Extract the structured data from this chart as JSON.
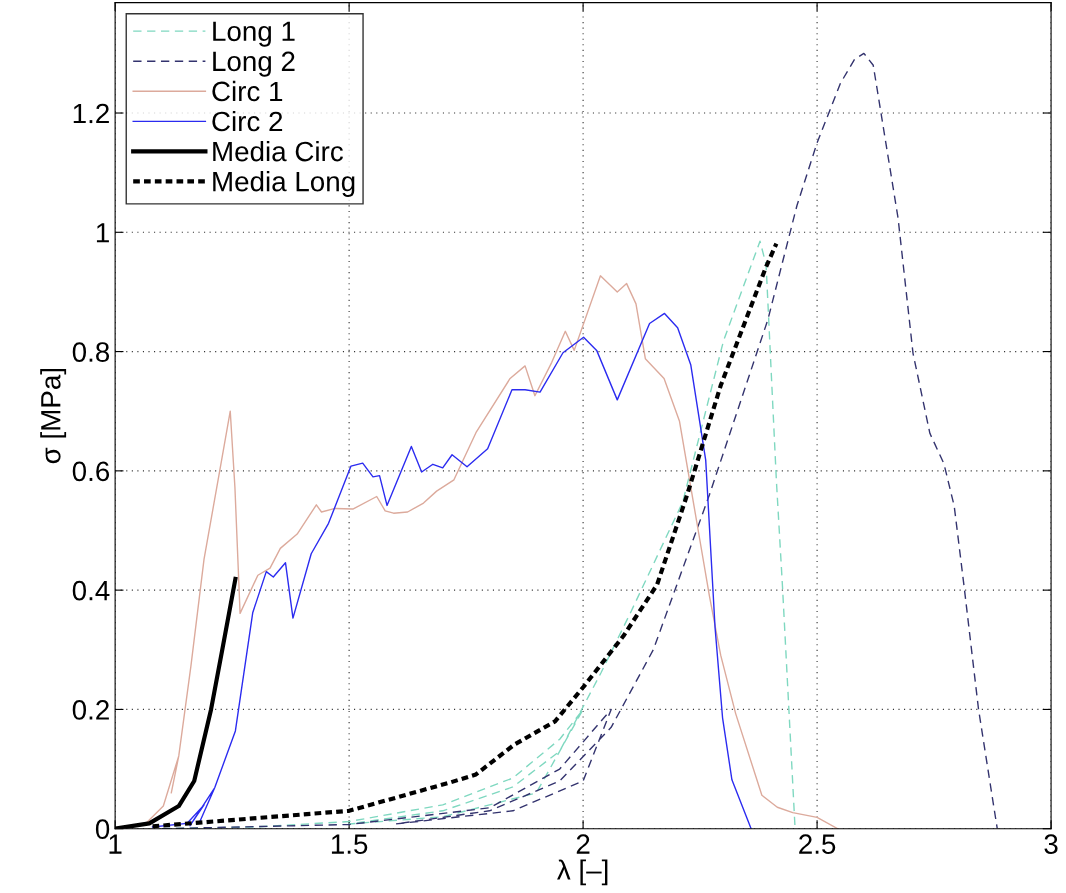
{
  "chart_data": {
    "type": "line",
    "xlabel": "λ [–]",
    "ylabel": "σ [MPa]",
    "xlim": [
      1,
      3
    ],
    "ylim": [
      0,
      1.385
    ],
    "xticks": [
      1,
      1.5,
      2,
      2.5,
      3
    ],
    "yticks": [
      0,
      0.2,
      0.4,
      0.6,
      0.8,
      1,
      1.2
    ],
    "grid": true,
    "legend": "top left",
    "marker": "none",
    "series": [
      {
        "name": "Long 1",
        "color": "#7fd8c0",
        "line_style": "dashed",
        "x": [
          1.1,
          1.3,
          1.5,
          1.7,
          1.85,
          1.95,
          2.0,
          1.9,
          1.7,
          1.5,
          1.7,
          1.85,
          1.95,
          2.038,
          2.1,
          2.213,
          2.3,
          2.378,
          2.391,
          2.413,
          2.426,
          2.453
        ],
        "values": [
          0.0,
          0.003,
          0.012,
          0.04,
          0.085,
          0.15,
          0.2,
          0.06,
          0.02,
          0.008,
          0.03,
          0.07,
          0.13,
          0.261,
          0.36,
          0.548,
          0.818,
          0.985,
          0.946,
          0.584,
          0.407,
          0.0
        ]
      },
      {
        "name": "Long 2",
        "color": "#33336e",
        "line_style": "dashed",
        "x": [
          1.1,
          1.5,
          1.8,
          1.95,
          2.06,
          2.0,
          1.85,
          1.6,
          1.8,
          1.95,
          2.06,
          2.15,
          2.27,
          2.395,
          2.457,
          2.5,
          2.55,
          2.58,
          2.6,
          2.62,
          2.673,
          2.705,
          2.741,
          2.771,
          2.793,
          2.814,
          2.845,
          2.885
        ],
        "values": [
          0.0,
          0.007,
          0.035,
          0.1,
          0.2,
          0.08,
          0.03,
          0.008,
          0.03,
          0.08,
          0.17,
          0.3,
          0.56,
          0.854,
          1.045,
          1.15,
          1.25,
          1.29,
          1.3,
          1.28,
          1.024,
          0.797,
          0.663,
          0.612,
          0.541,
          0.407,
          0.2,
          0.0
        ]
      },
      {
        "name": "Circ 1",
        "color": "#dcaa9c",
        "line_style": "solid",
        "x": [
          1.0,
          1.066,
          1.103,
          1.136,
          1.12,
          1.136,
          1.162,
          1.19,
          1.228,
          1.246,
          1.256,
          1.267,
          1.305,
          1.331,
          1.353,
          1.389,
          1.43,
          1.441,
          1.47,
          1.508,
          1.559,
          1.577,
          1.595,
          1.625,
          1.659,
          1.687,
          1.724,
          1.771,
          1.844,
          1.876,
          1.897,
          1.933,
          1.962,
          1.981,
          2.037,
          2.073,
          2.093,
          2.113,
          2.133,
          2.173,
          2.206,
          2.246,
          2.27,
          2.294,
          2.326,
          2.382,
          2.415,
          2.448,
          2.5,
          2.544
        ],
        "values": [
          0.0,
          0.009,
          0.038,
          0.122,
          0.06,
          0.122,
          0.273,
          0.452,
          0.62,
          0.7,
          0.572,
          0.361,
          0.425,
          0.437,
          0.47,
          0.494,
          0.543,
          0.531,
          0.537,
          0.536,
          0.557,
          0.533,
          0.529,
          0.531,
          0.546,
          0.566,
          0.585,
          0.664,
          0.755,
          0.776,
          0.726,
          0.782,
          0.834,
          0.802,
          0.927,
          0.9,
          0.914,
          0.88,
          0.788,
          0.755,
          0.683,
          0.5,
          0.39,
          0.291,
          0.193,
          0.056,
          0.036,
          0.027,
          0.019,
          0.0
        ]
      },
      {
        "name": "Circ 2",
        "color": "#2b2bf0",
        "line_style": "solid",
        "x": [
          1.08,
          1.154,
          1.19,
          1.16,
          1.213,
          1.18,
          1.213,
          1.257,
          1.294,
          1.323,
          1.338,
          1.364,
          1.38,
          1.419,
          1.456,
          1.504,
          1.529,
          1.551,
          1.565,
          1.581,
          1.633,
          1.655,
          1.679,
          1.7,
          1.72,
          1.752,
          1.796,
          1.848,
          1.876,
          1.908,
          1.957,
          2.001,
          2.029,
          2.073,
          2.142,
          2.174,
          2.202,
          2.23,
          2.262,
          2.282,
          2.298,
          2.318,
          2.359
        ],
        "values": [
          0.003,
          0.009,
          0.04,
          0.005,
          0.069,
          0.01,
          0.069,
          0.164,
          0.362,
          0.431,
          0.422,
          0.446,
          0.353,
          0.461,
          0.512,
          0.608,
          0.613,
          0.59,
          0.592,
          0.542,
          0.641,
          0.598,
          0.611,
          0.605,
          0.627,
          0.607,
          0.637,
          0.736,
          0.736,
          0.732,
          0.798,
          0.824,
          0.802,
          0.719,
          0.847,
          0.864,
          0.84,
          0.778,
          0.618,
          0.337,
          0.186,
          0.082,
          0.0
        ]
      },
      {
        "name": "Media Circ",
        "color": "#000000",
        "line_style": "solid",
        "x": [
          1.0,
          1.073,
          1.136,
          1.169,
          1.205,
          1.228,
          1.257
        ],
        "values": [
          0.0,
          0.009,
          0.038,
          0.08,
          0.2,
          0.296,
          0.419
        ]
      },
      {
        "name": "Media Long",
        "color": "#000000",
        "line_style": "dashed",
        "x": [
          1.08,
          1.5,
          1.718,
          1.771,
          1.853,
          1.94,
          2.001,
          2.086,
          2.158,
          2.222,
          2.294,
          2.391,
          2.413
        ],
        "values": [
          0.004,
          0.03,
          0.078,
          0.091,
          0.141,
          0.18,
          0.238,
          0.323,
          0.409,
          0.559,
          0.743,
          0.942,
          0.981
        ]
      }
    ]
  }
}
